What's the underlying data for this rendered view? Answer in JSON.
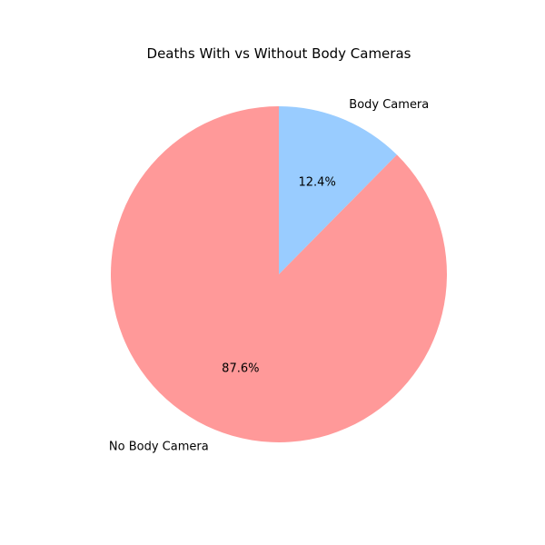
{
  "chart_data": {
    "type": "pie",
    "title": "Deaths With vs Without Body Cameras",
    "categories": [
      "Body Camera",
      "No Body Camera"
    ],
    "values": [
      12.4,
      87.6
    ],
    "value_labels": [
      "12.4%",
      "87.6%"
    ],
    "colors": [
      "#99ccff",
      "#ff9999"
    ],
    "start_angle_deg": 90,
    "direction": "clockwise",
    "legend": "none"
  }
}
